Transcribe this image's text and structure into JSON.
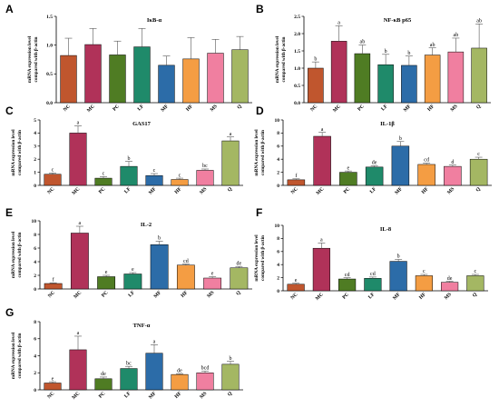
{
  "figure": {
    "colors": {
      "NC": "#c0562e",
      "MC": "#b03259",
      "PC": "#4f7c23",
      "LF": "#1f8a6a",
      "MF": "#2c6ca8",
      "HF": "#f49d43",
      "MS": "#f07fa0",
      "Q": "#a4b763"
    },
    "ylabel_line1": "mRNA expression level",
    "ylabel_line2": "compared with β-actin"
  },
  "chart_data": [
    {
      "type": "bar",
      "panel": "A",
      "title": "IκB-α",
      "categories": [
        "NC",
        "MC",
        "PC",
        "LF",
        "MF",
        "HF",
        "MS",
        "Q"
      ],
      "values": [
        0.82,
        1.01,
        0.83,
        0.97,
        0.65,
        0.76,
        0.86,
        0.92
      ],
      "errors": [
        0.3,
        0.28,
        0.24,
        0.32,
        0.16,
        0.37,
        0.24,
        0.23
      ],
      "letters": [
        "",
        "",
        "",
        "",
        "",
        "",
        "",
        ""
      ],
      "ylim": [
        0,
        1.5
      ],
      "yticks": [
        0,
        0.5,
        1.0,
        1.5
      ],
      "ytick_labels": [
        "0.0",
        "0.5",
        "1.0",
        "1.5"
      ]
    },
    {
      "type": "bar",
      "panel": "B",
      "title": "NF-κB p65",
      "categories": [
        "NC",
        "MC",
        "PC",
        "LF",
        "MF",
        "HF",
        "MS",
        "Q"
      ],
      "values": [
        1.0,
        1.78,
        1.42,
        1.1,
        1.08,
        1.38,
        1.47,
        1.58
      ],
      "errors": [
        0.18,
        0.45,
        0.25,
        0.3,
        0.27,
        0.21,
        0.4,
        0.7
      ],
      "letters": [
        "b",
        "a",
        "ab",
        "b",
        "b",
        "ab",
        "ab",
        "ab"
      ],
      "ylim": [
        0,
        2.5
      ],
      "yticks": [
        0,
        0.5,
        1.0,
        1.5,
        2.0,
        2.5
      ],
      "ytick_labels": [
        "0.0",
        "0.5",
        "1.0",
        "1.5",
        "2.0",
        "2.5"
      ]
    },
    {
      "type": "bar",
      "panel": "C",
      "title": "GAS17",
      "categories": [
        "NC",
        "MC",
        "PC",
        "LF",
        "MF",
        "HF",
        "MS",
        "Q"
      ],
      "values": [
        0.85,
        4.0,
        0.55,
        1.45,
        0.75,
        0.45,
        1.15,
        3.4
      ],
      "errors": [
        0.1,
        0.55,
        0.12,
        0.38,
        0.15,
        0.1,
        0.1,
        0.3
      ],
      "letters": [
        "c",
        "a",
        "c",
        "b",
        "c",
        "c",
        "bc",
        "a"
      ],
      "ylim": [
        0,
        5
      ],
      "yticks": [
        0,
        1,
        2,
        3,
        4,
        5
      ],
      "ytick_labels": [
        "0",
        "1",
        "2",
        "3",
        "4",
        "5"
      ]
    },
    {
      "type": "bar",
      "panel": "D",
      "title": "IL-1β",
      "categories": [
        "NC",
        "MC",
        "PC",
        "LF",
        "MF",
        "HF",
        "MS",
        "Q"
      ],
      "values": [
        0.85,
        7.5,
        2.0,
        2.8,
        6.0,
        3.2,
        2.9,
        4.0
      ],
      "errors": [
        0.15,
        0.6,
        0.2,
        0.2,
        0.7,
        0.2,
        0.2,
        0.3
      ],
      "letters": [
        "f",
        "a",
        "e",
        "de",
        "b",
        "cd",
        "d",
        "c"
      ],
      "ylim": [
        0,
        10
      ],
      "yticks": [
        0,
        2,
        4,
        6,
        8,
        10
      ],
      "ytick_labels": [
        "0",
        "2",
        "4",
        "6",
        "8",
        "10"
      ]
    },
    {
      "type": "bar",
      "panel": "E",
      "title": "IL-2",
      "categories": [
        "NC",
        "MC",
        "PC",
        "LF",
        "MF",
        "HF",
        "MS",
        "Q"
      ],
      "values": [
        0.8,
        8.2,
        1.8,
        2.2,
        6.5,
        3.5,
        1.6,
        3.1
      ],
      "errors": [
        0.1,
        1.0,
        0.2,
        0.2,
        0.5,
        0.15,
        0.2,
        0.2
      ],
      "letters": [
        "f",
        "a",
        "e",
        "e",
        "b",
        "cd",
        "e",
        "de"
      ],
      "ylim": [
        0,
        10
      ],
      "yticks": [
        0,
        2,
        4,
        6,
        8,
        10
      ],
      "ytick_labels": [
        "0",
        "2",
        "4",
        "6",
        "8",
        "10"
      ]
    },
    {
      "type": "bar",
      "panel": "F",
      "title": "IL-8",
      "categories": [
        "NC",
        "MC",
        "PC",
        "LF",
        "MF",
        "HF",
        "MS",
        "Q"
      ],
      "values": [
        1.0,
        6.5,
        1.8,
        1.9,
        4.5,
        2.3,
        1.3,
        2.3
      ],
      "errors": [
        0.15,
        0.8,
        0.2,
        0.2,
        0.3,
        0.2,
        0.15,
        0.2
      ],
      "letters": [
        "e",
        "a",
        "cd",
        "cd",
        "b",
        "c",
        "de",
        "c"
      ],
      "ylim": [
        0,
        10
      ],
      "yticks": [
        0,
        2,
        4,
        6,
        8,
        10
      ],
      "ytick_labels": [
        "0",
        "2",
        "4",
        "6",
        "8",
        "10"
      ]
    },
    {
      "type": "bar",
      "panel": "G",
      "title": "TNF-α",
      "categories": [
        "NC",
        "MC",
        "PC",
        "LF",
        "MF",
        "HF",
        "MS",
        "Q"
      ],
      "values": [
        0.8,
        4.7,
        1.3,
        2.5,
        4.3,
        1.8,
        2.0,
        3.0
      ],
      "errors": [
        0.15,
        1.6,
        0.2,
        0.25,
        1.0,
        0.1,
        0.2,
        0.35
      ],
      "letters": [
        "e",
        "a",
        "de",
        "bc",
        "a",
        "de",
        "bcd",
        "b"
      ],
      "ylim": [
        0,
        8
      ],
      "yticks": [
        0,
        2,
        4,
        6,
        8
      ],
      "ytick_labels": [
        "0",
        "2",
        "4",
        "6",
        "8"
      ]
    }
  ]
}
